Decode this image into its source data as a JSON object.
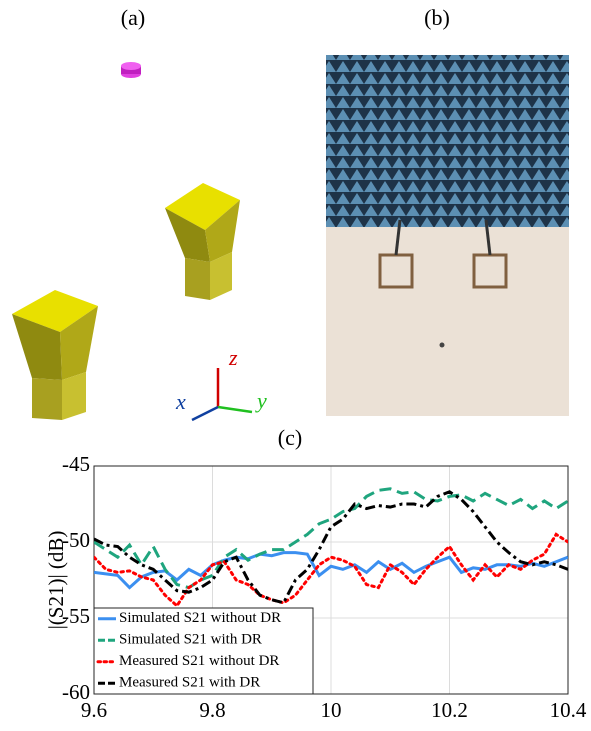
{
  "panels": {
    "a": {
      "label": "(a)",
      "axis_labels": [
        "x",
        "y",
        "z"
      ]
    },
    "b": {
      "label": "(b)"
    }
  },
  "chart_data": {
    "type": "line",
    "title": "(c)",
    "ylabel": "|(S21)| (dB)",
    "x": [
      9.6,
      9.62,
      9.64,
      9.66,
      9.68,
      9.7,
      9.72,
      9.74,
      9.76,
      9.78,
      9.8,
      9.82,
      9.84,
      9.86,
      9.88,
      9.9,
      9.92,
      9.94,
      9.96,
      9.98,
      10,
      10.02,
      10.04,
      10.06,
      10.08,
      10.1,
      10.12,
      10.14,
      10.16,
      10.18,
      10.2,
      10.22,
      10.24,
      10.26,
      10.28,
      10.3,
      10.32,
      10.34,
      10.36,
      10.38,
      10.4
    ],
    "series": [
      {
        "name": "Simulated S21 without DR",
        "color": "#3b8ff0",
        "dash": "solid",
        "values": [
          -52,
          -52.1,
          -52.2,
          -53,
          -52.3,
          -52,
          -51.9,
          -52.5,
          -51.8,
          -52.2,
          -51.5,
          -51.2,
          -51,
          -51.1,
          -50.8,
          -50.9,
          -50.7,
          -50.7,
          -50.8,
          -52.2,
          -51.6,
          -51.8,
          -51.5,
          -52,
          -51.3,
          -51.8,
          -51.4,
          -52,
          -51.6,
          -51.3,
          -51,
          -52,
          -51.7,
          -51.8,
          -51.5,
          -51.5,
          -51.6,
          -51.4,
          -51.6,
          -51.3,
          -51
        ]
      },
      {
        "name": "Simulated S21 with DR",
        "color": "#1fa57e",
        "dash": "dashed",
        "values": [
          -50,
          -50.5,
          -51,
          -50.2,
          -51.5,
          -50.3,
          -51.8,
          -52.8,
          -53,
          -52.5,
          -52.2,
          -51,
          -50.5,
          -51.2,
          -50.8,
          -50.5,
          -50.5,
          -50,
          -49.5,
          -48.8,
          -48.5,
          -48,
          -47.8,
          -47,
          -46.6,
          -46.5,
          -46.8,
          -46.7,
          -47.2,
          -47.3,
          -47,
          -46.9,
          -47.3,
          -46.8,
          -47.2,
          -47.6,
          -47.2,
          -47.8,
          -47.3,
          -47.8,
          -47.3
        ]
      },
      {
        "name": "Measured S21 without DR",
        "color": "#ff0000",
        "dash": "dotted",
        "values": [
          -51,
          -51.8,
          -52,
          -51.9,
          -52.3,
          -52.5,
          -53.5,
          -54.2,
          -53,
          -52.5,
          -51.5,
          -51.3,
          -52.5,
          -52.8,
          -53.5,
          -53.8,
          -54,
          -53.5,
          -52.5,
          -51.5,
          -51,
          -51.2,
          -51.6,
          -52.8,
          -53,
          -51.5,
          -52,
          -52.8,
          -51.8,
          -51,
          -50.3,
          -51.5,
          -52.5,
          -51.5,
          -52.3,
          -51.5,
          -51.8,
          -51.2,
          -50.8,
          -49.5,
          -50
        ]
      },
      {
        "name": "Measured S21 with DR",
        "color": "#000000",
        "dash": "dashdot",
        "values": [
          -49.8,
          -50.2,
          -50.3,
          -51,
          -51.5,
          -51.8,
          -52.5,
          -53.2,
          -53.3,
          -53,
          -52.5,
          -51.3,
          -51,
          -52.5,
          -53.5,
          -53.8,
          -54,
          -52.5,
          -51.8,
          -50.5,
          -49,
          -48.5,
          -47.5,
          -47.8,
          -47.6,
          -47.7,
          -47.5,
          -47.5,
          -47.7,
          -47,
          -46.7,
          -47.2,
          -48,
          -49,
          -50,
          -50.7,
          -51.3,
          -51.5,
          -51.3,
          -51.5,
          -51.8
        ]
      }
    ],
    "xlim": [
      9.6,
      10.4
    ],
    "xticks": [
      9.6,
      9.8,
      10,
      10.2,
      10.4
    ],
    "ylim": [
      -60,
      -45
    ],
    "yticks": [
      -60,
      -55,
      -50,
      -45
    ],
    "grid": true,
    "legend": "lower left"
  }
}
